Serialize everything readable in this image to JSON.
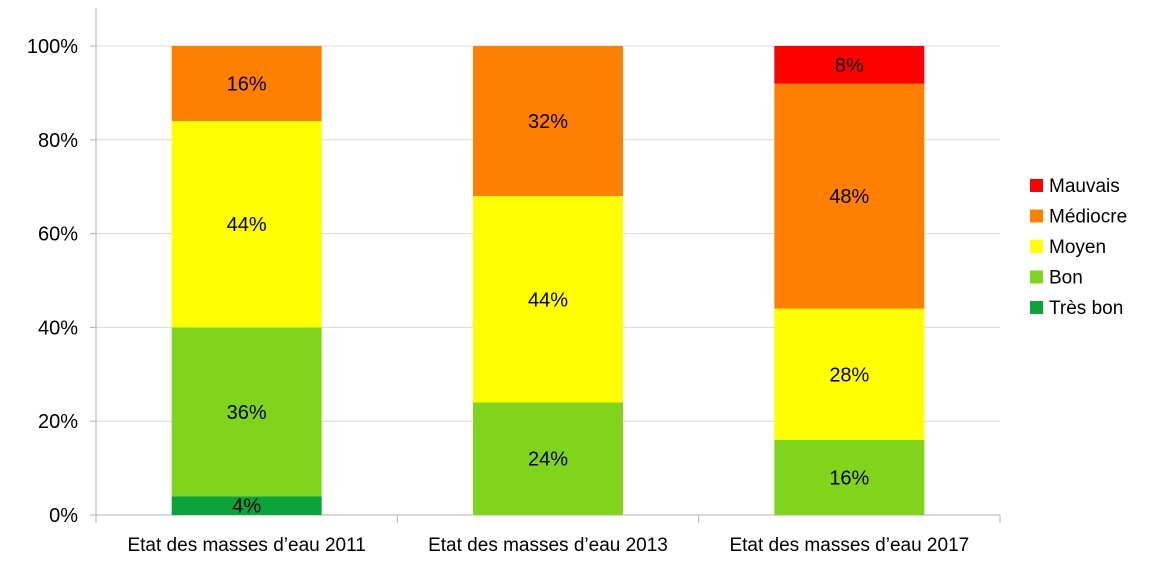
{
  "chart_data": {
    "type": "bar",
    "stacked": true,
    "percent": true,
    "categories": [
      "Etat des masses d’eau 2011",
      "Etat des masses d’eau 2013",
      "Etat des masses d’eau 2017"
    ],
    "series": [
      {
        "name": "Très bon",
        "color": "#0ca33b",
        "values": [
          4,
          0,
          0
        ]
      },
      {
        "name": "Bon",
        "color": "#80d41c",
        "values": [
          36,
          24,
          16
        ]
      },
      {
        "name": "Moyen",
        "color": "#ffff00",
        "values": [
          44,
          44,
          28
        ]
      },
      {
        "name": "Médiocre",
        "color": "#ff8000",
        "values": [
          16,
          32,
          48
        ]
      },
      {
        "name": "Mauvais",
        "color": "#ff0000",
        "values": [
          0,
          0,
          8
        ]
      }
    ],
    "data_labels": [
      [
        "4%",
        "36%",
        "44%",
        "16%",
        ""
      ],
      [
        "",
        "24%",
        "44%",
        "32%",
        ""
      ],
      [
        "",
        "16%",
        "28%",
        "48%",
        "8%"
      ]
    ],
    "ylim": [
      0,
      100
    ],
    "yticks": [
      0,
      20,
      40,
      60,
      80,
      100
    ],
    "ytick_labels": [
      "0%",
      "20%",
      "40%",
      "60%",
      "80%",
      "100%"
    ],
    "grid": true,
    "legend_position": "right",
    "legend_order": [
      "Mauvais",
      "Médiocre",
      "Moyen",
      "Bon",
      "Très bon"
    ]
  }
}
